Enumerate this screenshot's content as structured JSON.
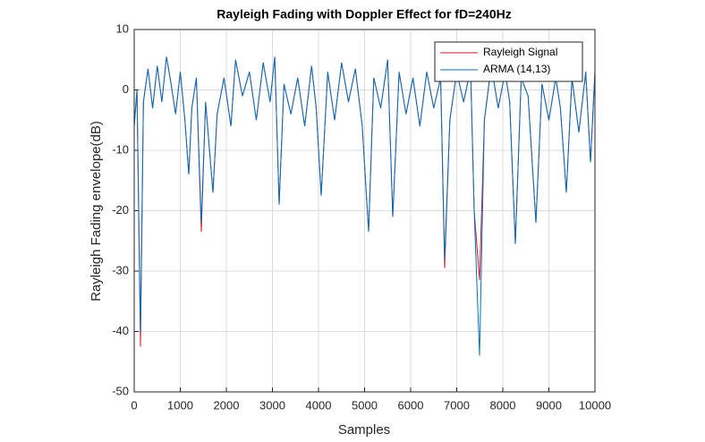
{
  "chart_data": {
    "type": "line",
    "title": "Rayleigh Fading with Doppler Effect for fD=240Hz",
    "x_label": "Samples",
    "y_label": "Rayleigh Fading envelope(dB)",
    "x": [
      0,
      60,
      136,
      200,
      300,
      400,
      500,
      600,
      700,
      800,
      900,
      1000,
      1100,
      1185,
      1250,
      1350,
      1456,
      1550,
      1709,
      1800,
      1950,
      2100,
      2200,
      2350,
      2500,
      2650,
      2800,
      2950,
      3050,
      3146,
      3250,
      3400,
      3550,
      3700,
      3850,
      3950,
      4058,
      4200,
      4350,
      4500,
      4650,
      4800,
      4950,
      5087,
      5200,
      5350,
      5500,
      5612,
      5750,
      5900,
      6050,
      6200,
      6350,
      6500,
      6650,
      6738,
      6850,
      7000,
      7150,
      7300,
      7379,
      7495,
      7600,
      7750,
      7900,
      8050,
      8150,
      8272,
      8400,
      8550,
      8718,
      8850,
      9000,
      9150,
      9250,
      9379,
      9500,
      9650,
      9800,
      9903,
      10000
    ],
    "series": [
      {
        "name": "Rayleigh Signal",
        "color": "#d9162e",
        "values": [
          -6,
          0,
          -42.5,
          -2,
          3.5,
          -3,
          4,
          -2,
          5.5,
          1,
          -4,
          3,
          -5,
          -14,
          -3,
          2,
          -23.5,
          -2,
          -17,
          -4,
          2,
          -6,
          5,
          -1,
          3,
          -5,
          4.5,
          -2,
          5.5,
          -19,
          1,
          -4,
          2,
          -6,
          4,
          -3,
          -17.5,
          3,
          -5,
          4.5,
          -2,
          3.5,
          -6,
          -23.5,
          2,
          -3,
          5,
          -21,
          3,
          -4,
          2,
          -6,
          3,
          -3,
          2,
          -29.5,
          -5,
          3,
          -2,
          3.5,
          -20,
          -31.5,
          -5,
          4,
          -3,
          3,
          -2,
          -25.5,
          2,
          -1,
          -22,
          1,
          -5,
          2,
          -3,
          -17,
          2,
          -7,
          3,
          -12,
          3
        ]
      },
      {
        "name": "ARMA (14,13)",
        "color": "#0072bd",
        "values": [
          -6,
          0,
          -40,
          -2,
          3.5,
          -3,
          4,
          -2,
          5.5,
          1,
          -4,
          3,
          -5,
          -14,
          -3,
          2,
          -22,
          -2,
          -17,
          -4,
          2,
          -6,
          5,
          -1,
          3,
          -5,
          4.5,
          -2,
          5.5,
          -19,
          1,
          -4,
          2,
          -6,
          4,
          -3,
          -17.5,
          3,
          -5,
          4.5,
          -2,
          3.5,
          -6,
          -23.5,
          2,
          -3,
          5,
          -21,
          3,
          -4,
          2,
          -6,
          3,
          -3,
          2,
          -28,
          -5,
          3,
          -2,
          3.5,
          -20,
          -44,
          -5,
          4,
          -3,
          3,
          -2,
          -25.5,
          2,
          -1,
          -22,
          1,
          -5,
          2,
          -3,
          -17,
          2,
          -7,
          3,
          -12,
          3
        ]
      }
    ],
    "xlim": [
      0,
      10000
    ],
    "xticks": [
      0,
      1000,
      2000,
      3000,
      4000,
      5000,
      6000,
      7000,
      8000,
      9000,
      10000
    ],
    "ylim": [
      -50,
      10
    ],
    "yticks": [
      -50,
      -40,
      -30,
      -20,
      -10,
      0,
      10
    ],
    "grid": true,
    "legend": "top-right"
  }
}
